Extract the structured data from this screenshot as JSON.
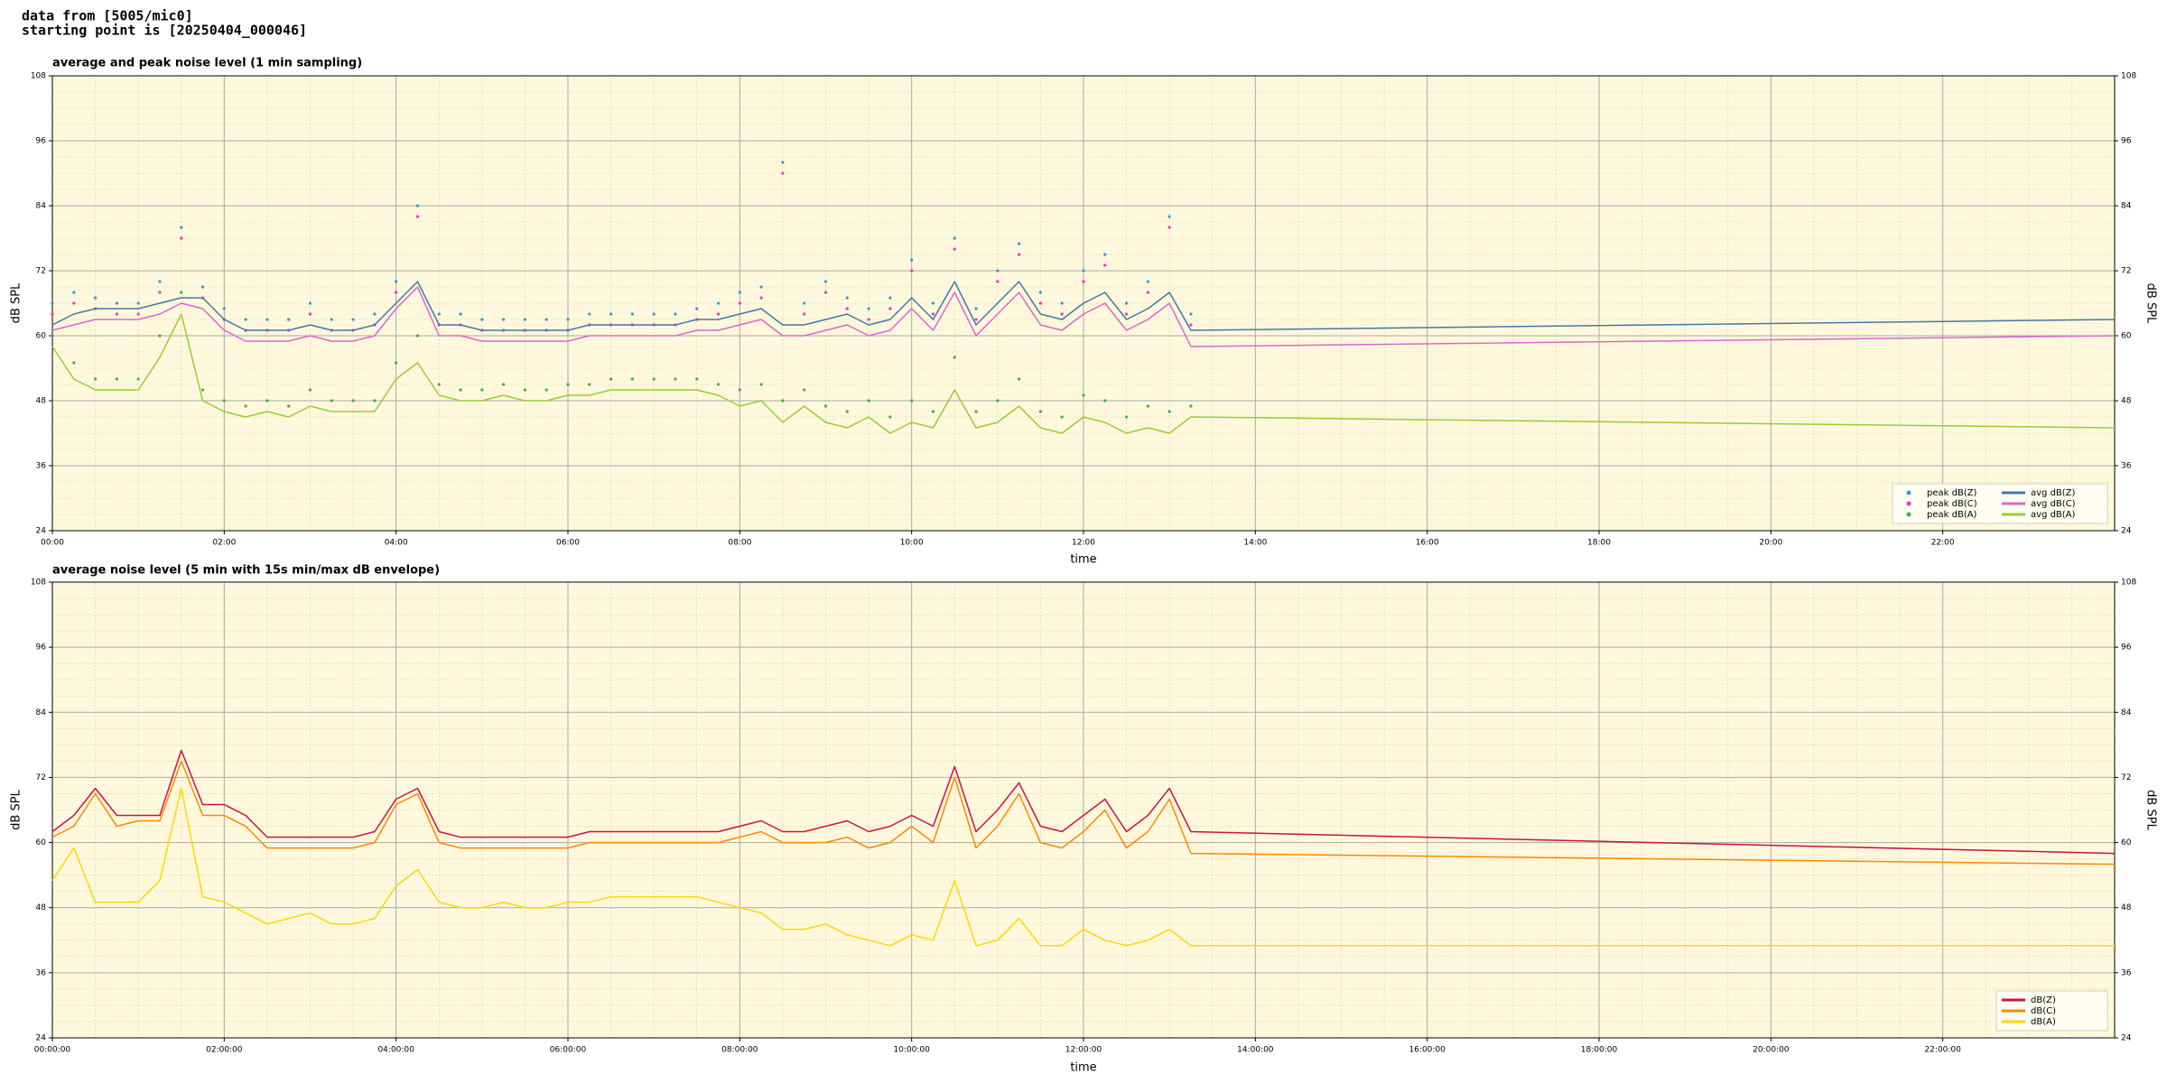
{
  "header": {
    "source": "data from [5005/mic0]",
    "start": "starting point is [20250404_000046]"
  },
  "chart_data": [
    {
      "type": "line",
      "title": "average and peak noise level (1 min sampling)",
      "xlabel": "time",
      "ylabel": "dB SPL",
      "legend": "lower right",
      "legend_columns": 2,
      "grid": true,
      "background": "#fff8dc",
      "xlim": [
        0,
        24
      ],
      "ylim": [
        24,
        108
      ],
      "xticks": [
        {
          "value": 0,
          "label": "00:00"
        },
        {
          "value": 2,
          "label": "02:00"
        },
        {
          "value": 4,
          "label": "04:00"
        },
        {
          "value": 6,
          "label": "06:00"
        },
        {
          "value": 8,
          "label": "08:00"
        },
        {
          "value": 10,
          "label": "10:00"
        },
        {
          "value": 12,
          "label": "12:00"
        },
        {
          "value": 14,
          "label": "14:00"
        },
        {
          "value": 16,
          "label": "16:00"
        },
        {
          "value": 18,
          "label": "18:00"
        },
        {
          "value": 20,
          "label": "20:00"
        },
        {
          "value": 22,
          "label": "22:00"
        }
      ],
      "yticks": [
        24,
        36,
        48,
        60,
        72,
        84,
        96,
        108
      ],
      "x": [
        0,
        0.25,
        0.5,
        0.75,
        1,
        1.25,
        1.5,
        1.75,
        2,
        2.25,
        2.5,
        2.75,
        3,
        3.25,
        3.5,
        3.75,
        4,
        4.25,
        4.5,
        4.75,
        5,
        5.25,
        5.5,
        5.75,
        6,
        6.25,
        6.5,
        6.75,
        7,
        7.25,
        7.5,
        7.75,
        8,
        8.25,
        8.5,
        8.75,
        9,
        9.25,
        9.5,
        9.75,
        10,
        10.25,
        10.5,
        10.75,
        11,
        11.25,
        11.5,
        11.75,
        12,
        12.25,
        12.5,
        12.75,
        13,
        13.25,
        24
      ],
      "series": [
        {
          "name": "peak dB(Z)",
          "mode": "markers",
          "color": "#3399dd",
          "values": [
            66,
            68,
            67,
            66,
            66,
            70,
            80,
            69,
            65,
            63,
            63,
            63,
            66,
            63,
            63,
            64,
            70,
            84,
            64,
            64,
            63,
            63,
            63,
            63,
            63,
            64,
            64,
            64,
            64,
            64,
            65,
            66,
            68,
            69,
            92,
            66,
            70,
            67,
            65,
            67,
            74,
            66,
            78,
            65,
            72,
            77,
            68,
            66,
            72,
            75,
            66,
            70,
            82,
            64,
            null
          ]
        },
        {
          "name": "peak dB(C)",
          "mode": "markers",
          "color": "#ee33cc",
          "values": [
            64,
            66,
            65,
            64,
            64,
            68,
            78,
            67,
            63,
            61,
            61,
            61,
            64,
            61,
            61,
            62,
            68,
            82,
            62,
            62,
            61,
            61,
            61,
            61,
            61,
            62,
            62,
            62,
            62,
            62,
            63,
            64,
            66,
            67,
            90,
            64,
            68,
            65,
            63,
            65,
            72,
            64,
            76,
            63,
            70,
            75,
            66,
            64,
            70,
            73,
            64,
            68,
            80,
            62,
            null
          ]
        },
        {
          "name": "peak dB(A)",
          "mode": "markers",
          "color": "#44aa55",
          "values": [
            60,
            55,
            52,
            52,
            52,
            60,
            68,
            50,
            48,
            47,
            48,
            47,
            50,
            48,
            48,
            48,
            55,
            60,
            51,
            50,
            50,
            51,
            50,
            50,
            51,
            51,
            52,
            52,
            52,
            52,
            52,
            51,
            50,
            51,
            48,
            50,
            47,
            46,
            48,
            45,
            48,
            46,
            56,
            46,
            48,
            52,
            46,
            45,
            49,
            48,
            45,
            47,
            46,
            47,
            null
          ]
        },
        {
          "name": "avg dB(Z)",
          "mode": "lines",
          "color": "#4477aa",
          "values": [
            62,
            64,
            65,
            65,
            65,
            66,
            67,
            67,
            63,
            61,
            61,
            61,
            62,
            61,
            61,
            62,
            66,
            70,
            62,
            62,
            61,
            61,
            61,
            61,
            61,
            62,
            62,
            62,
            62,
            62,
            63,
            63,
            64,
            65,
            62,
            62,
            63,
            64,
            62,
            63,
            67,
            63,
            70,
            62,
            66,
            70,
            64,
            63,
            66,
            68,
            63,
            65,
            68,
            61,
            63
          ]
        },
        {
          "name": "avg dB(C)",
          "mode": "lines",
          "color": "#dd66cc",
          "values": [
            61,
            62,
            63,
            63,
            63,
            64,
            66,
            65,
            61,
            59,
            59,
            59,
            60,
            59,
            59,
            60,
            65,
            69,
            60,
            60,
            59,
            59,
            59,
            59,
            59,
            60,
            60,
            60,
            60,
            60,
            61,
            61,
            62,
            63,
            60,
            60,
            61,
            62,
            60,
            61,
            65,
            61,
            68,
            60,
            64,
            68,
            62,
            61,
            64,
            66,
            61,
            63,
            66,
            58,
            60
          ]
        },
        {
          "name": "avg dB(A)",
          "mode": "lines",
          "color": "#99cc33",
          "values": [
            58,
            52,
            50,
            50,
            50,
            56,
            64,
            48,
            46,
            45,
            46,
            45,
            47,
            46,
            46,
            46,
            52,
            55,
            49,
            48,
            48,
            49,
            48,
            48,
            49,
            49,
            50,
            50,
            50,
            50,
            50,
            49,
            47,
            48,
            44,
            47,
            44,
            43,
            45,
            42,
            44,
            43,
            50,
            43,
            44,
            47,
            43,
            42,
            45,
            44,
            42,
            43,
            42,
            45,
            43
          ]
        }
      ]
    },
    {
      "type": "line",
      "title": "average noise level (5 min with 15s min/max dB envelope)",
      "xlabel": "time",
      "ylabel": "dB SPL",
      "legend": "lower right",
      "legend_columns": 1,
      "grid": true,
      "background": "#fff8dc",
      "xlim": [
        0,
        24
      ],
      "ylim": [
        24,
        108
      ],
      "xticks": [
        {
          "value": 0,
          "label": "00:00:00"
        },
        {
          "value": 2,
          "label": "02:00:00"
        },
        {
          "value": 4,
          "label": "04:00:00"
        },
        {
          "value": 6,
          "label": "06:00:00"
        },
        {
          "value": 8,
          "label": "08:00:00"
        },
        {
          "value": 10,
          "label": "10:00:00"
        },
        {
          "value": 12,
          "label": "12:00:00"
        },
        {
          "value": 14,
          "label": "14:00:00"
        },
        {
          "value": 16,
          "label": "16:00:00"
        },
        {
          "value": 18,
          "label": "18:00:00"
        },
        {
          "value": 20,
          "label": "20:00:00"
        },
        {
          "value": 22,
          "label": "22:00:00"
        }
      ],
      "yticks": [
        24,
        36,
        48,
        60,
        72,
        84,
        96,
        108
      ],
      "x": [
        0,
        0.25,
        0.5,
        0.75,
        1,
        1.25,
        1.5,
        1.75,
        2,
        2.25,
        2.5,
        2.75,
        3,
        3.25,
        3.5,
        3.75,
        4,
        4.25,
        4.5,
        4.75,
        5,
        5.25,
        5.5,
        5.75,
        6,
        6.25,
        6.5,
        6.75,
        7,
        7.25,
        7.5,
        7.75,
        8,
        8.25,
        8.5,
        8.75,
        9,
        9.25,
        9.5,
        9.75,
        10,
        10.25,
        10.5,
        10.75,
        11,
        11.25,
        11.5,
        11.75,
        12,
        12.25,
        12.5,
        12.75,
        13,
        13.25,
        24
      ],
      "series": [
        {
          "name": "dB(Z)",
          "mode": "lines",
          "color": "#cc1144",
          "values": [
            62,
            65,
            70,
            65,
            65,
            65,
            77,
            67,
            67,
            65,
            61,
            61,
            61,
            61,
            61,
            62,
            68,
            70,
            62,
            61,
            61,
            61,
            61,
            61,
            61,
            62,
            62,
            62,
            62,
            62,
            62,
            62,
            63,
            64,
            62,
            62,
            63,
            64,
            62,
            63,
            65,
            63,
            74,
            62,
            66,
            71,
            63,
            62,
            65,
            68,
            62,
            65,
            70,
            62,
            58
          ]
        },
        {
          "name": "dB(C)",
          "mode": "lines",
          "color": "#ff8800",
          "values": [
            61,
            63,
            69,
            63,
            64,
            64,
            75,
            65,
            65,
            63,
            59,
            59,
            59,
            59,
            59,
            60,
            67,
            69,
            60,
            59,
            59,
            59,
            59,
            59,
            59,
            60,
            60,
            60,
            60,
            60,
            60,
            60,
            61,
            62,
            60,
            60,
            60,
            61,
            59,
            60,
            63,
            60,
            72,
            59,
            63,
            69,
            60,
            59,
            62,
            66,
            59,
            62,
            68,
            58,
            56
          ]
        },
        {
          "name": "dB(A)",
          "mode": "lines",
          "color": "#ffd700",
          "values": [
            53,
            59,
            49,
            49,
            49,
            53,
            70,
            50,
            49,
            47,
            45,
            46,
            47,
            45,
            45,
            46,
            52,
            55,
            49,
            48,
            48,
            49,
            48,
            48,
            49,
            49,
            50,
            50,
            50,
            50,
            50,
            49,
            48,
            47,
            44,
            44,
            45,
            43,
            42,
            41,
            43,
            42,
            53,
            41,
            42,
            46,
            41,
            41,
            44,
            42,
            41,
            42,
            44,
            41,
            41
          ]
        }
      ]
    }
  ]
}
